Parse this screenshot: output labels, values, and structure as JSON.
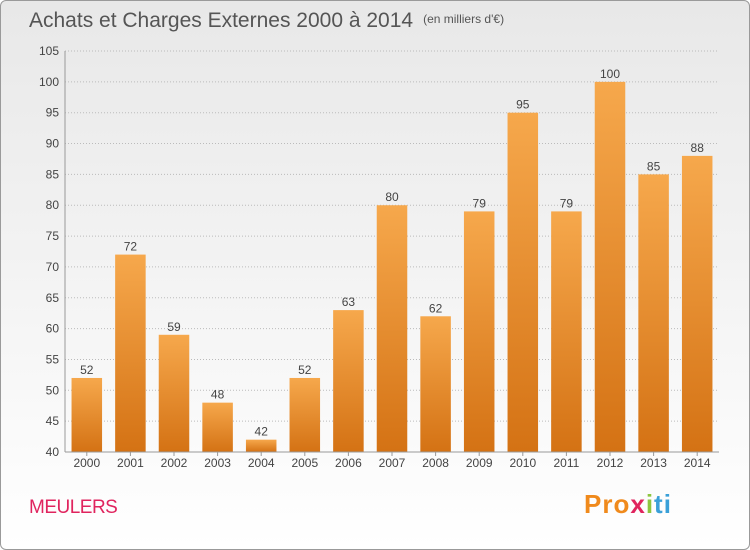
{
  "title": "Achats et Charges Externes 2000 à 2014",
  "subtitle": "(en milliers d'€)",
  "city": "MEULERS",
  "brand": {
    "parts": [
      "Pro",
      "x",
      "i",
      "ti"
    ]
  },
  "colors": {
    "bar_top": "#f6a84c",
    "bar_bottom": "#d47214",
    "grid": "#bbbbbb",
    "city": "#e0245e"
  },
  "chart_data": {
    "type": "bar",
    "categories": [
      "2000",
      "2001",
      "2002",
      "2003",
      "2004",
      "2005",
      "2006",
      "2007",
      "2008",
      "2009",
      "2010",
      "2011",
      "2012",
      "2013",
      "2014"
    ],
    "values": [
      52,
      72,
      59,
      48,
      42,
      52,
      63,
      80,
      62,
      79,
      95,
      79,
      100,
      85,
      88
    ],
    "ylim": [
      40,
      105
    ],
    "yticks": [
      40,
      45,
      50,
      55,
      60,
      65,
      70,
      75,
      80,
      85,
      90,
      95,
      100,
      105
    ],
    "grid": true,
    "data_labels": true
  }
}
